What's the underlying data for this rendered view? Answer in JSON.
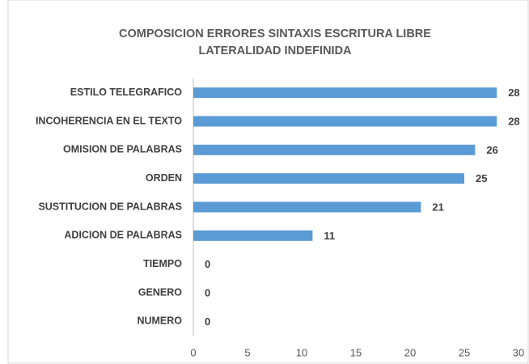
{
  "chart_data": {
    "type": "bar",
    "orientation": "horizontal",
    "title": [
      "COMPOSICION ERRORES SINTAXIS ESCRITURA LIBRE",
      "LATERALIDAD INDEFINIDA"
    ],
    "categories": [
      "ESTILO TELEGRAFICO",
      "INCOHERENCIA EN EL TEXTO",
      "OMISION DE PALABRAS",
      "ORDEN",
      "SUSTITUCION DE PALABRAS",
      "ADICION DE PALABRAS",
      "TIEMPO",
      "GENERO",
      "NUMERO"
    ],
    "values": [
      28,
      28,
      26,
      25,
      21,
      11,
      0,
      0,
      0
    ],
    "color": "#5b9bd5",
    "xlim": [
      0,
      30
    ],
    "xticks": [
      0,
      5,
      10,
      15,
      20,
      25,
      30
    ],
    "grid": false
  }
}
